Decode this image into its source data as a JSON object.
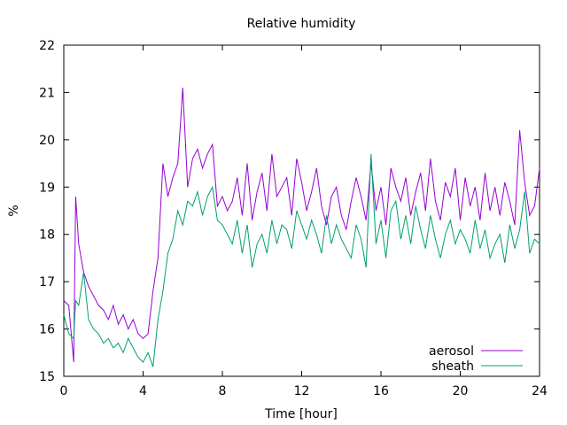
{
  "chart_data": {
    "type": "line",
    "title": "Relative humidity",
    "xlabel": "Time [hour]",
    "ylabel": "%",
    "xlim": [
      0,
      24
    ],
    "ylim": [
      15,
      22
    ],
    "xticks": [
      "0",
      "4",
      "8",
      "12",
      "16",
      "20",
      "24"
    ],
    "yticks": [
      "15",
      "16",
      "17",
      "18",
      "19",
      "20",
      "21",
      "22"
    ],
    "grid": false,
    "legend_position": "bottom-right",
    "series": [
      {
        "name": "aerosol",
        "color": "#9400d3",
        "x": [
          0,
          0.25,
          0.5,
          0.6,
          0.75,
          1,
          1.25,
          1.5,
          1.75,
          2,
          2.25,
          2.5,
          2.75,
          3,
          3.25,
          3.5,
          3.75,
          4,
          4.25,
          4.5,
          4.75,
          5,
          5.25,
          5.5,
          5.75,
          6,
          6.25,
          6.5,
          6.75,
          7,
          7.25,
          7.5,
          7.75,
          8,
          8.25,
          8.5,
          8.75,
          9,
          9.25,
          9.5,
          9.75,
          10,
          10.25,
          10.5,
          10.75,
          11,
          11.25,
          11.5,
          11.75,
          12,
          12.25,
          12.5,
          12.75,
          13,
          13.25,
          13.5,
          13.75,
          14,
          14.25,
          14.5,
          14.75,
          15,
          15.25,
          15.5,
          15.75,
          16,
          16.25,
          16.5,
          16.75,
          17,
          17.25,
          17.5,
          17.75,
          18,
          18.25,
          18.5,
          18.75,
          19,
          19.25,
          19.5,
          19.75,
          20,
          20.25,
          20.5,
          20.75,
          21,
          21.25,
          21.5,
          21.75,
          22,
          22.25,
          22.5,
          22.75,
          23,
          23.25,
          23.5,
          23.75,
          24
        ],
        "y": [
          16.6,
          16.5,
          15.3,
          18.8,
          17.8,
          17.2,
          16.9,
          16.7,
          16.5,
          16.4,
          16.2,
          16.5,
          16.1,
          16.3,
          16.0,
          16.2,
          15.9,
          15.8,
          15.9,
          16.8,
          17.5,
          19.5,
          18.8,
          19.2,
          19.5,
          21.1,
          19.0,
          19.6,
          19.8,
          19.4,
          19.7,
          19.9,
          18.6,
          18.8,
          18.5,
          18.7,
          19.2,
          18.4,
          19.5,
          18.3,
          18.9,
          19.3,
          18.5,
          19.7,
          18.8,
          19.0,
          19.2,
          18.4,
          19.6,
          19.1,
          18.5,
          18.9,
          19.4,
          18.6,
          18.2,
          18.8,
          19.0,
          18.4,
          18.1,
          18.7,
          19.2,
          18.8,
          18.3,
          19.5,
          18.5,
          19.0,
          18.2,
          19.4,
          19.0,
          18.7,
          19.2,
          18.4,
          18.9,
          19.3,
          18.5,
          19.6,
          18.7,
          18.3,
          19.1,
          18.8,
          19.4,
          18.3,
          19.2,
          18.6,
          19.0,
          18.3,
          19.3,
          18.5,
          19.0,
          18.4,
          19.1,
          18.7,
          18.2,
          20.2,
          19.1,
          18.4,
          18.6,
          19.4
        ]
      },
      {
        "name": "sheath",
        "color": "#009e73",
        "x": [
          0,
          0.25,
          0.5,
          0.6,
          0.75,
          1,
          1.25,
          1.5,
          1.75,
          2,
          2.25,
          2.5,
          2.75,
          3,
          3.25,
          3.5,
          3.75,
          4,
          4.25,
          4.5,
          4.75,
          5,
          5.25,
          5.5,
          5.75,
          6,
          6.25,
          6.5,
          6.75,
          7,
          7.25,
          7.5,
          7.75,
          8,
          8.25,
          8.5,
          8.75,
          9,
          9.25,
          9.5,
          9.75,
          10,
          10.25,
          10.5,
          10.75,
          11,
          11.25,
          11.5,
          11.75,
          12,
          12.25,
          12.5,
          12.75,
          13,
          13.25,
          13.5,
          13.75,
          14,
          14.25,
          14.5,
          14.75,
          15,
          15.25,
          15.5,
          15.75,
          16,
          16.25,
          16.5,
          16.75,
          17,
          17.25,
          17.5,
          17.75,
          18,
          18.25,
          18.5,
          18.75,
          19,
          19.25,
          19.5,
          19.75,
          20,
          20.25,
          20.5,
          20.75,
          21,
          21.25,
          21.5,
          21.75,
          22,
          22.25,
          22.5,
          22.75,
          23,
          23.25,
          23.5,
          23.75,
          24
        ],
        "y": [
          16.3,
          15.9,
          15.8,
          16.6,
          16.5,
          17.2,
          16.2,
          16.0,
          15.9,
          15.7,
          15.8,
          15.6,
          15.7,
          15.5,
          15.8,
          15.6,
          15.4,
          15.3,
          15.5,
          15.2,
          16.2,
          16.8,
          17.6,
          17.9,
          18.5,
          18.2,
          18.7,
          18.6,
          18.9,
          18.4,
          18.8,
          19.0,
          18.3,
          18.2,
          18.0,
          17.8,
          18.3,
          17.6,
          18.2,
          17.3,
          17.8,
          18.0,
          17.6,
          18.3,
          17.8,
          18.2,
          18.1,
          17.7,
          18.5,
          18.2,
          17.9,
          18.3,
          18.0,
          17.6,
          18.4,
          17.8,
          18.2,
          17.9,
          17.7,
          17.5,
          18.2,
          17.9,
          17.3,
          19.7,
          17.8,
          18.3,
          17.5,
          18.5,
          18.7,
          17.9,
          18.4,
          17.8,
          18.6,
          18.1,
          17.7,
          18.4,
          17.9,
          17.5,
          18.0,
          18.3,
          17.8,
          18.1,
          17.9,
          17.6,
          18.3,
          17.7,
          18.1,
          17.5,
          17.8,
          18.0,
          17.4,
          18.2,
          17.7,
          18.1,
          18.9,
          17.6,
          17.9,
          17.8
        ]
      }
    ]
  }
}
